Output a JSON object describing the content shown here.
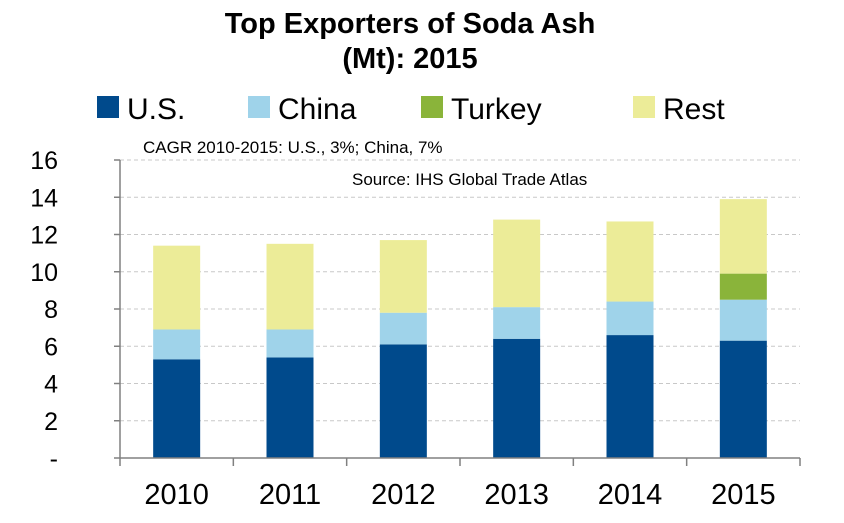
{
  "chart_data": {
    "type": "bar",
    "stacked": true,
    "title_lines": [
      "Top Exporters of Soda Ash",
      "(Mt): 2015"
    ],
    "annotations": {
      "cagr": "CAGR 2010-2015: U.S., 3%; China, 7%",
      "source": "Source: IHS Global Trade Atlas"
    },
    "categories": [
      "2010",
      "2011",
      "2012",
      "2013",
      "2014",
      "2015"
    ],
    "series": [
      {
        "name": "U.S.",
        "color": "#004a8c",
        "values": [
          5.3,
          5.4,
          6.1,
          6.4,
          6.6,
          6.3
        ]
      },
      {
        "name": "China",
        "color": "#9fd3ea",
        "values": [
          1.6,
          1.5,
          1.7,
          1.7,
          1.8,
          2.2
        ]
      },
      {
        "name": "Turkey",
        "color": "#8ab43a",
        "values": [
          0,
          0,
          0,
          0,
          0,
          1.4
        ]
      },
      {
        "name": "Rest",
        "color": "#ecec98",
        "values": [
          4.5,
          4.6,
          3.9,
          4.7,
          4.3,
          4.0
        ]
      }
    ],
    "ylim": [
      0,
      16
    ],
    "yticks": [
      "-",
      "2",
      "4",
      "6",
      "8",
      "10",
      "12",
      "14",
      "16"
    ],
    "grid": true,
    "legend_position": "top"
  }
}
